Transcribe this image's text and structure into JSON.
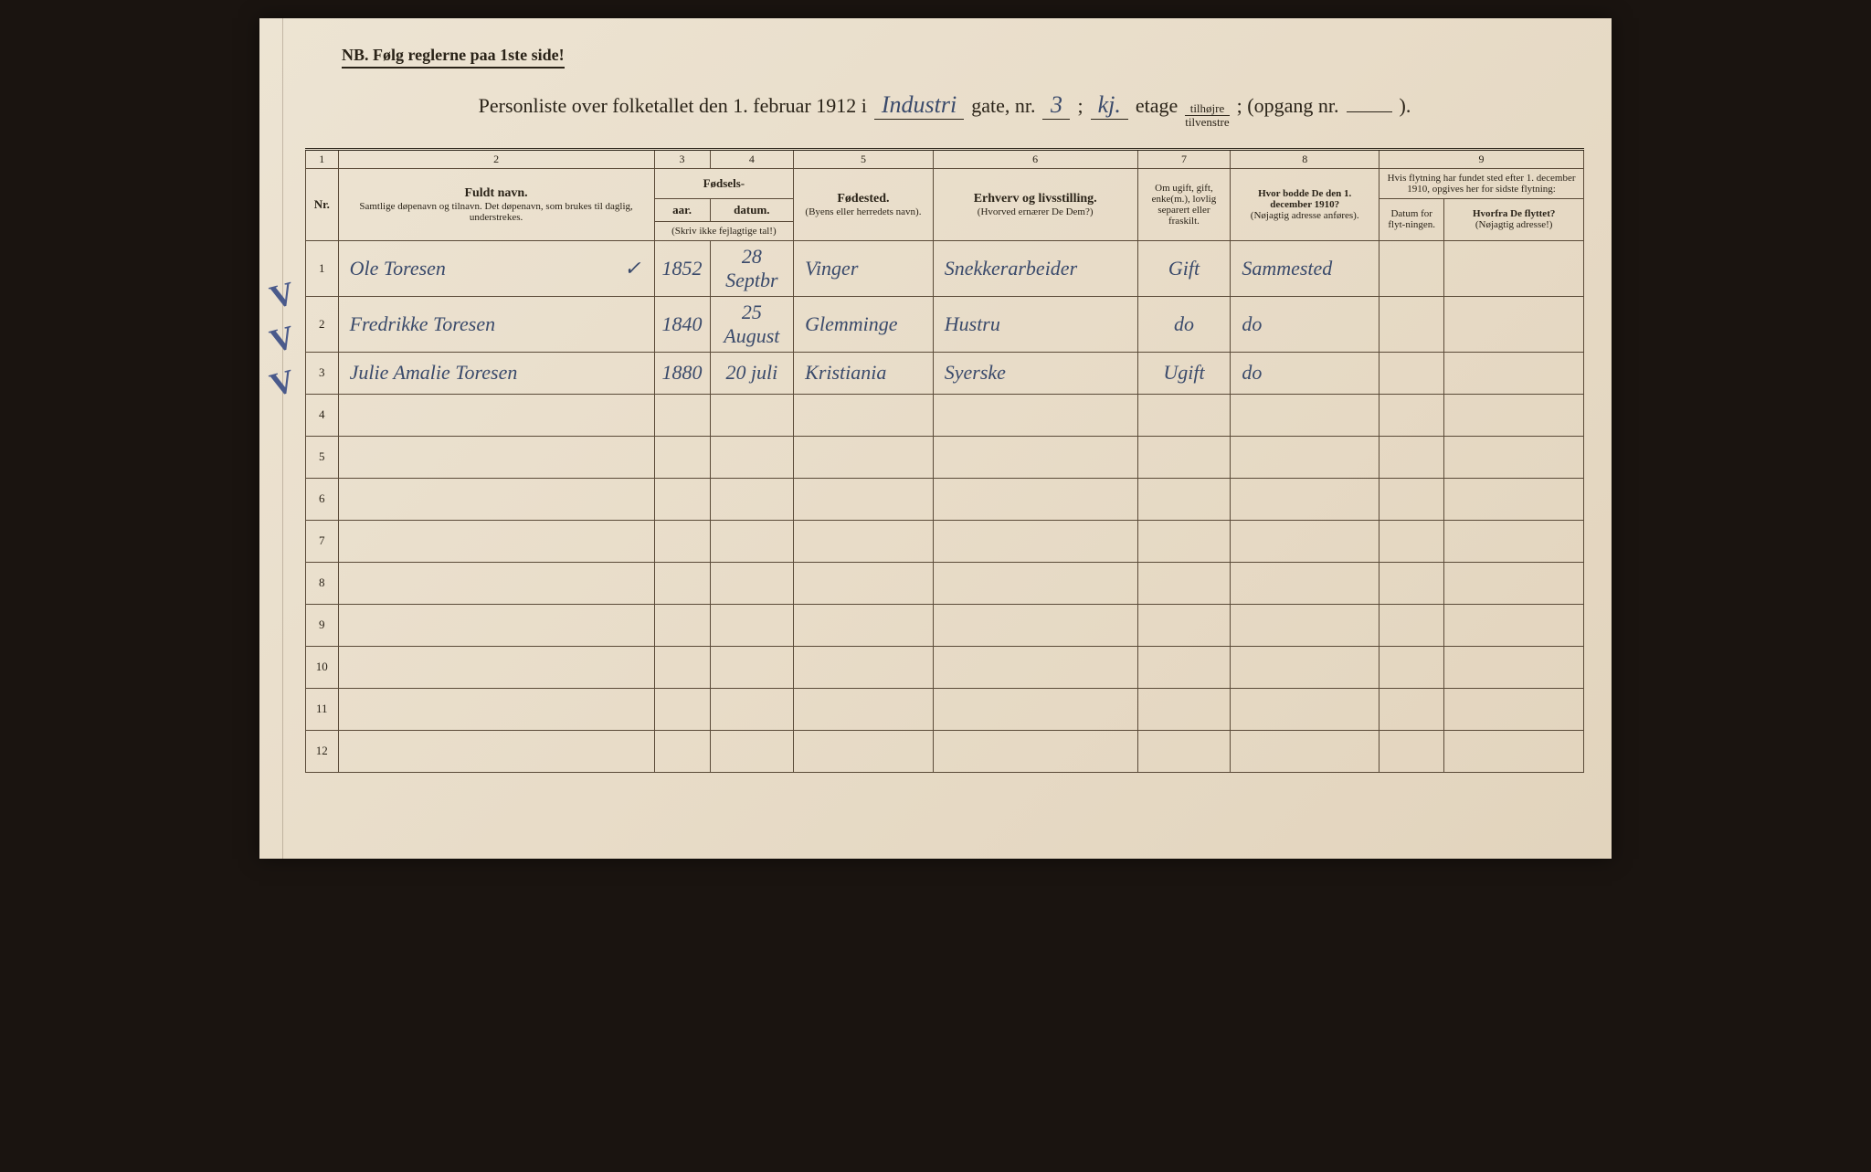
{
  "header": {
    "nb": "NB.   Følg reglerne paa 1ste side!",
    "title_prefix": "Personliste over folketallet den 1. februar 1912 i",
    "street_hw": "Industri",
    "gate_label": "gate, nr.",
    "nr_hw": "3",
    "semicolon": ";",
    "floor_hw": "kj.",
    "etage": "etage",
    "frac_top": "tilhøjre",
    "frac_bot": "tilvenstre",
    "opgang": "; (opgang nr.",
    "opgang_end": ")."
  },
  "columns": {
    "c1": "1",
    "c2": "2",
    "c3": "3",
    "c4": "4",
    "c5": "5",
    "c6": "6",
    "c7": "7",
    "c8": "8",
    "c9": "9",
    "nr": "Nr.",
    "name_main": "Fuldt navn.",
    "name_sub": "Samtlige døpenavn og tilnavn. Det døpenavn, som brukes til daglig, understrekes.",
    "birth_top": "Fødsels-",
    "year": "aar.",
    "date": "datum.",
    "birth_note": "(Skriv ikke fejlagtige tal!)",
    "place_main": "Fødested.",
    "place_sub": "(Byens eller herredets navn).",
    "occ_main": "Erhverv og livsstilling.",
    "occ_sub": "(Hvorved ernærer De Dem?)",
    "status": "Om ugift, gift, enke(m.), lovlig separert eller fraskilt.",
    "addr_main": "Hvor bodde De den 1. december 1910?",
    "addr_sub": "(Nøjagtig adresse anføres).",
    "move_top": "Hvis flytning har fundet sted efter 1. december 1910, opgives her for sidste flytning:",
    "move_date": "Datum for flyt-ningen.",
    "move_from_main": "Hvorfra De flyttet?",
    "move_from_sub": "(Nøjagtig adresse!)"
  },
  "rows": [
    {
      "n": "1",
      "check": "V",
      "name": "Ole Toresen",
      "mark": "✓",
      "year": "1852",
      "date": "28 Septbr",
      "place": "Vinger",
      "occ": "Snekkerarbeider",
      "status": "Gift",
      "addr": "Sammested",
      "md": "",
      "mf": ""
    },
    {
      "n": "2",
      "check": "V",
      "name": "Fredrikke Toresen",
      "mark": "",
      "year": "1840",
      "date": "25 August",
      "place": "Glemminge",
      "occ": "Hustru",
      "status": "do",
      "addr": "do",
      "md": "",
      "mf": ""
    },
    {
      "n": "3",
      "check": "V",
      "name": "Julie Amalie Toresen",
      "mark": "",
      "year": "1880",
      "date": "20 juli",
      "place": "Kristiania",
      "occ": "Syerske",
      "status": "Ugift",
      "addr": "do",
      "md": "",
      "mf": ""
    },
    {
      "n": "4",
      "check": "",
      "name": "",
      "mark": "",
      "year": "",
      "date": "",
      "place": "",
      "occ": "",
      "status": "",
      "addr": "",
      "md": "",
      "mf": ""
    },
    {
      "n": "5",
      "check": "",
      "name": "",
      "mark": "",
      "year": "",
      "date": "",
      "place": "",
      "occ": "",
      "status": "",
      "addr": "",
      "md": "",
      "mf": ""
    },
    {
      "n": "6",
      "check": "",
      "name": "",
      "mark": "",
      "year": "",
      "date": "",
      "place": "",
      "occ": "",
      "status": "",
      "addr": "",
      "md": "",
      "mf": ""
    },
    {
      "n": "7",
      "check": "",
      "name": "",
      "mark": "",
      "year": "",
      "date": "",
      "place": "",
      "occ": "",
      "status": "",
      "addr": "",
      "md": "",
      "mf": ""
    },
    {
      "n": "8",
      "check": "",
      "name": "",
      "mark": "",
      "year": "",
      "date": "",
      "place": "",
      "occ": "",
      "status": "",
      "addr": "",
      "md": "",
      "mf": ""
    },
    {
      "n": "9",
      "check": "",
      "name": "",
      "mark": "",
      "year": "",
      "date": "",
      "place": "",
      "occ": "",
      "status": "",
      "addr": "",
      "md": "",
      "mf": ""
    },
    {
      "n": "10",
      "check": "",
      "name": "",
      "mark": "",
      "year": "",
      "date": "",
      "place": "",
      "occ": "",
      "status": "",
      "addr": "",
      "md": "",
      "mf": ""
    },
    {
      "n": "11",
      "check": "",
      "name": "",
      "mark": "",
      "year": "",
      "date": "",
      "place": "",
      "occ": "",
      "status": "",
      "addr": "",
      "md": "",
      "mf": ""
    },
    {
      "n": "12",
      "check": "",
      "name": "",
      "mark": "",
      "year": "",
      "date": "",
      "place": "",
      "occ": "",
      "status": "",
      "addr": "",
      "md": "",
      "mf": ""
    }
  ]
}
